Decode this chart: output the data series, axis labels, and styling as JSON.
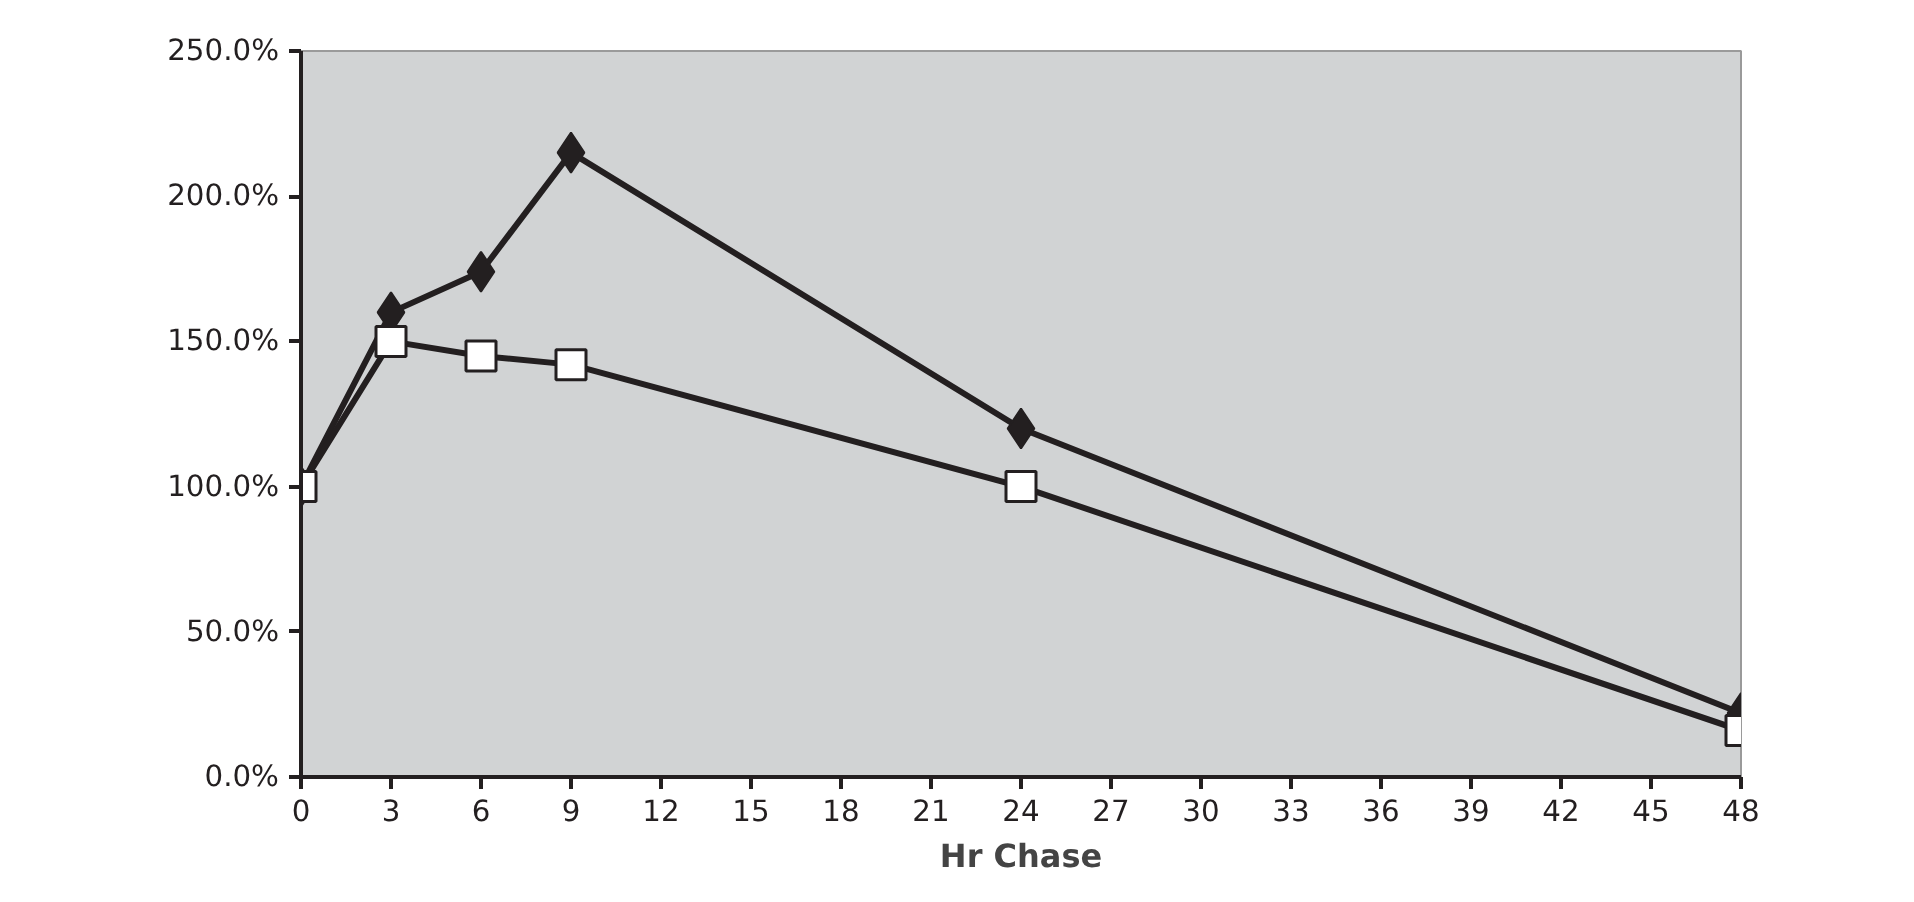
{
  "chart_data": {
    "type": "line",
    "xlabel": "Hr Chase",
    "x": [
      0,
      3,
      6,
      9,
      24,
      48
    ],
    "xlim": [
      0,
      48
    ],
    "xticks": [
      0,
      3,
      6,
      9,
      12,
      15,
      18,
      21,
      24,
      27,
      30,
      33,
      36,
      39,
      42,
      45,
      48
    ],
    "ylim": [
      0,
      250
    ],
    "yticks": [
      {
        "value": 0,
        "label": "0.0%"
      },
      {
        "value": 50,
        "label": "50.0%"
      },
      {
        "value": 100,
        "label": "100.0%"
      },
      {
        "value": 150,
        "label": "150.0%"
      },
      {
        "value": 200,
        "label": "200.0%"
      },
      {
        "value": 250,
        "label": "250.0%"
      }
    ],
    "grid": false,
    "line_style": "solid",
    "series": [
      {
        "color": "#231f20",
        "marker": "diamond",
        "values": [
          100,
          160,
          174,
          215,
          120,
          22
        ]
      },
      {
        "color": "#231f20",
        "marker": "square",
        "values": [
          100,
          150,
          145,
          142,
          100,
          16
        ]
      }
    ]
  }
}
